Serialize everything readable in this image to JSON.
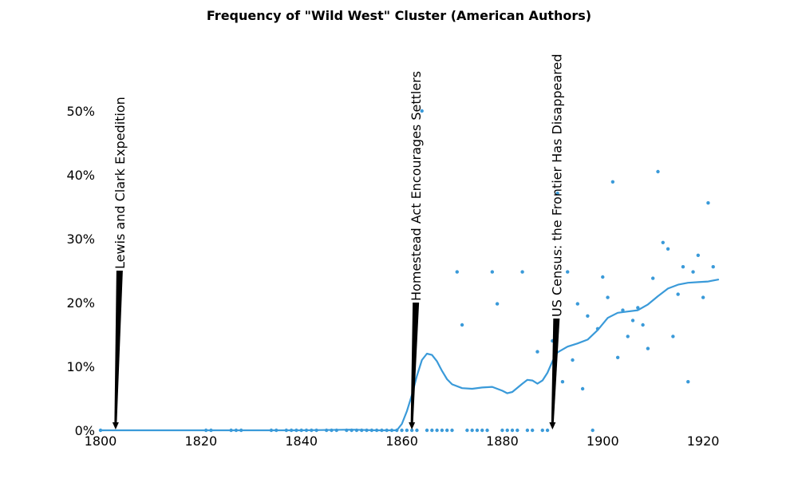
{
  "chart_data": {
    "type": "scatter",
    "title": "Frequency of \"Wild West\" Cluster (American Authors)",
    "xlabel": "",
    "ylabel": "",
    "xlim": [
      1800,
      1923
    ],
    "ylim": [
      0,
      0.5
    ],
    "grid": false,
    "legend": "none",
    "x_ticks": [
      1800,
      1820,
      1840,
      1860,
      1880,
      1900,
      1920
    ],
    "x_tick_labels": [
      "1800",
      "1820",
      "1840",
      "1860",
      "1880",
      "1900",
      "1920"
    ],
    "y_ticks": [
      0,
      0.1,
      0.2,
      0.3,
      0.4,
      0.5
    ],
    "y_tick_labels": [
      "0%",
      "10%",
      "20%",
      "30%",
      "40%",
      "50%"
    ],
    "colors": {
      "series": "#3a9ad9",
      "arrows": "#000000"
    },
    "points": [
      {
        "x": 1800,
        "y": 0
      },
      {
        "x": 1821,
        "y": 0
      },
      {
        "x": 1822,
        "y": 0
      },
      {
        "x": 1826,
        "y": 0
      },
      {
        "x": 1827,
        "y": 0
      },
      {
        "x": 1828,
        "y": 0
      },
      {
        "x": 1834,
        "y": 0
      },
      {
        "x": 1835,
        "y": 0
      },
      {
        "x": 1837,
        "y": 0
      },
      {
        "x": 1838,
        "y": 0
      },
      {
        "x": 1839,
        "y": 0
      },
      {
        "x": 1840,
        "y": 0
      },
      {
        "x": 1841,
        "y": 0
      },
      {
        "x": 1842,
        "y": 0
      },
      {
        "x": 1843,
        "y": 0
      },
      {
        "x": 1845,
        "y": 0
      },
      {
        "x": 1846,
        "y": 0
      },
      {
        "x": 1847,
        "y": 0
      },
      {
        "x": 1849,
        "y": 0
      },
      {
        "x": 1850,
        "y": 0
      },
      {
        "x": 1851,
        "y": 0
      },
      {
        "x": 1852,
        "y": 0
      },
      {
        "x": 1853,
        "y": 0
      },
      {
        "x": 1854,
        "y": 0
      },
      {
        "x": 1855,
        "y": 0
      },
      {
        "x": 1856,
        "y": 0
      },
      {
        "x": 1857,
        "y": 0
      },
      {
        "x": 1858,
        "y": 0
      },
      {
        "x": 1859,
        "y": 0
      },
      {
        "x": 1860,
        "y": 0
      },
      {
        "x": 1861,
        "y": 0
      },
      {
        "x": 1862,
        "y": 0
      },
      {
        "x": 1863,
        "y": 0
      },
      {
        "x": 1864,
        "y": 0.5
      },
      {
        "x": 1865,
        "y": 0
      },
      {
        "x": 1866,
        "y": 0
      },
      {
        "x": 1867,
        "y": 0
      },
      {
        "x": 1868,
        "y": 0
      },
      {
        "x": 1869,
        "y": 0
      },
      {
        "x": 1870,
        "y": 0
      },
      {
        "x": 1871,
        "y": 0.248
      },
      {
        "x": 1872,
        "y": 0.165
      },
      {
        "x": 1873,
        "y": 0
      },
      {
        "x": 1874,
        "y": 0
      },
      {
        "x": 1875,
        "y": 0
      },
      {
        "x": 1876,
        "y": 0
      },
      {
        "x": 1877,
        "y": 0
      },
      {
        "x": 1878,
        "y": 0.248
      },
      {
        "x": 1879,
        "y": 0.198
      },
      {
        "x": 1880,
        "y": 0
      },
      {
        "x": 1881,
        "y": 0
      },
      {
        "x": 1882,
        "y": 0
      },
      {
        "x": 1883,
        "y": 0
      },
      {
        "x": 1884,
        "y": 0.248
      },
      {
        "x": 1885,
        "y": 0
      },
      {
        "x": 1886,
        "y": 0
      },
      {
        "x": 1887,
        "y": 0.123
      },
      {
        "x": 1888,
        "y": 0
      },
      {
        "x": 1889,
        "y": 0
      },
      {
        "x": 1890,
        "y": 0.14
      },
      {
        "x": 1891,
        "y": 0.371
      },
      {
        "x": 1892,
        "y": 0.076
      },
      {
        "x": 1893,
        "y": 0.248
      },
      {
        "x": 1894,
        "y": 0.11
      },
      {
        "x": 1895,
        "y": 0.198
      },
      {
        "x": 1896,
        "y": 0.065
      },
      {
        "x": 1897,
        "y": 0.179
      },
      {
        "x": 1898,
        "y": 0
      },
      {
        "x": 1899,
        "y": 0.159
      },
      {
        "x": 1900,
        "y": 0.24
      },
      {
        "x": 1901,
        "y": 0.208
      },
      {
        "x": 1902,
        "y": 0.389
      },
      {
        "x": 1903,
        "y": 0.114
      },
      {
        "x": 1904,
        "y": 0.188
      },
      {
        "x": 1905,
        "y": 0.147
      },
      {
        "x": 1906,
        "y": 0.172
      },
      {
        "x": 1907,
        "y": 0.192
      },
      {
        "x": 1908,
        "y": 0.165
      },
      {
        "x": 1909,
        "y": 0.128
      },
      {
        "x": 1910,
        "y": 0.238
      },
      {
        "x": 1911,
        "y": 0.405
      },
      {
        "x": 1912,
        "y": 0.294
      },
      {
        "x": 1913,
        "y": 0.284
      },
      {
        "x": 1914,
        "y": 0.147
      },
      {
        "x": 1915,
        "y": 0.213
      },
      {
        "x": 1916,
        "y": 0.256
      },
      {
        "x": 1917,
        "y": 0.076
      },
      {
        "x": 1918,
        "y": 0.248
      },
      {
        "x": 1919,
        "y": 0.274
      },
      {
        "x": 1920,
        "y": 0.208
      },
      {
        "x": 1921,
        "y": 0.356
      },
      {
        "x": 1922,
        "y": 0.256
      }
    ],
    "trend": [
      {
        "x": 1800,
        "y": 0
      },
      {
        "x": 1840,
        "y": 0
      },
      {
        "x": 1850,
        "y": 0.001
      },
      {
        "x": 1855,
        "y": 0
      },
      {
        "x": 1859,
        "y": 0
      },
      {
        "x": 1860,
        "y": 0.01
      },
      {
        "x": 1861,
        "y": 0.03
      },
      {
        "x": 1862,
        "y": 0.055
      },
      {
        "x": 1863,
        "y": 0.085
      },
      {
        "x": 1864,
        "y": 0.11
      },
      {
        "x": 1865,
        "y": 0.12
      },
      {
        "x": 1866,
        "y": 0.118
      },
      {
        "x": 1867,
        "y": 0.108
      },
      {
        "x": 1868,
        "y": 0.093
      },
      {
        "x": 1869,
        "y": 0.08
      },
      {
        "x": 1870,
        "y": 0.072
      },
      {
        "x": 1872,
        "y": 0.066
      },
      {
        "x": 1874,
        "y": 0.065
      },
      {
        "x": 1876,
        "y": 0.067
      },
      {
        "x": 1878,
        "y": 0.068
      },
      {
        "x": 1880,
        "y": 0.062
      },
      {
        "x": 1881,
        "y": 0.058
      },
      {
        "x": 1882,
        "y": 0.06
      },
      {
        "x": 1884,
        "y": 0.073
      },
      {
        "x": 1885,
        "y": 0.079
      },
      {
        "x": 1886,
        "y": 0.078
      },
      {
        "x": 1887,
        "y": 0.073
      },
      {
        "x": 1888,
        "y": 0.078
      },
      {
        "x": 1889,
        "y": 0.09
      },
      {
        "x": 1890,
        "y": 0.108
      },
      {
        "x": 1891,
        "y": 0.122
      },
      {
        "x": 1893,
        "y": 0.131
      },
      {
        "x": 1895,
        "y": 0.136
      },
      {
        "x": 1897,
        "y": 0.142
      },
      {
        "x": 1899,
        "y": 0.157
      },
      {
        "x": 1901,
        "y": 0.176
      },
      {
        "x": 1903,
        "y": 0.184
      },
      {
        "x": 1905,
        "y": 0.186
      },
      {
        "x": 1907,
        "y": 0.188
      },
      {
        "x": 1909,
        "y": 0.197
      },
      {
        "x": 1911,
        "y": 0.21
      },
      {
        "x": 1913,
        "y": 0.222
      },
      {
        "x": 1915,
        "y": 0.228
      },
      {
        "x": 1917,
        "y": 0.231
      },
      {
        "x": 1919,
        "y": 0.232
      },
      {
        "x": 1921,
        "y": 0.233
      },
      {
        "x": 1923,
        "y": 0.236
      }
    ],
    "annotations": [
      {
        "text": "Lewis and Clark Expedition",
        "x": 1803,
        "y": 0,
        "text_y": 0.25
      },
      {
        "text": "Homestead Act Encourages Settlers",
        "x": 1862,
        "y": 0,
        "text_y": 0.2
      },
      {
        "text": "US Census: the Frontier Has Disappeared",
        "x": 1890,
        "y": 0,
        "text_y": 0.175
      }
    ]
  }
}
